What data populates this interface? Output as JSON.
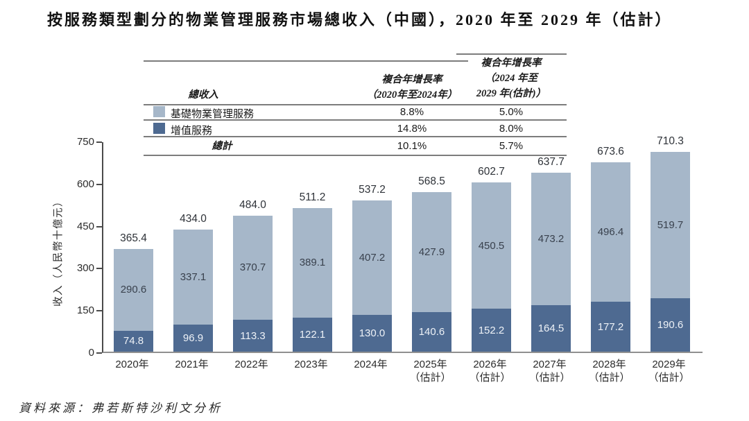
{
  "title": "按服務類型劃分的物業管理服務市場總收入（中國），2020 年至 2029 年（估計）",
  "source": "資料來源：弗若斯特沙利文分析",
  "colors": {
    "basic_service": "#a6b7c9",
    "value_added_service": "#4e6a91",
    "axis": "#4a4a4a",
    "table_line": "#7c7c7c"
  },
  "table": {
    "col1_header": "總收入",
    "col2_header": [
      "複合年增長率",
      "（2020年至2024年）"
    ],
    "col3_header": [
      "複合年增長率",
      "（2024 年至",
      "2029 年(估計)）"
    ],
    "rows": [
      {
        "label": "基礎物業管理服務",
        "cagr_2020_2024": "8.8%",
        "cagr_2024_2029": "5.0%"
      },
      {
        "label": "增值服務",
        "cagr_2020_2024": "14.8%",
        "cagr_2024_2029": "8.0%"
      }
    ],
    "total_row": {
      "label": "總計",
      "cagr_2020_2024": "10.1%",
      "cagr_2024_2029": "5.7%"
    }
  },
  "chart_data": {
    "type": "bar",
    "stacked": true,
    "title": "按服務類型劃分的物業管理服務市場總收入（中國），2020年至2029年（估計）",
    "ylabel": "收入（人民幣十億元）",
    "ylim": [
      0,
      750
    ],
    "yticks": [
      0,
      150,
      300,
      450,
      600,
      750
    ],
    "grid": false,
    "legend_position": "top-table",
    "categories": [
      {
        "year": "2020年",
        "note": ""
      },
      {
        "year": "2021年",
        "note": ""
      },
      {
        "year": "2022年",
        "note": ""
      },
      {
        "year": "2023年",
        "note": ""
      },
      {
        "year": "2024年",
        "note": ""
      },
      {
        "year": "2025年",
        "note": "（估計）"
      },
      {
        "year": "2026年",
        "note": "（估計）"
      },
      {
        "year": "2027年",
        "note": "（估計）"
      },
      {
        "year": "2028年",
        "note": "（估計）"
      },
      {
        "year": "2029年",
        "note": "（估計）"
      }
    ],
    "series": [
      {
        "name": "基礎物業管理服務",
        "color": "#a6b7c9",
        "values": [
          290.6,
          337.1,
          370.7,
          389.1,
          407.2,
          427.9,
          450.5,
          473.2,
          496.4,
          519.7
        ]
      },
      {
        "name": "增值服務",
        "color": "#4e6a91",
        "values": [
          74.8,
          96.9,
          113.3,
          122.1,
          130.0,
          140.6,
          152.2,
          164.5,
          177.2,
          190.6
        ]
      }
    ],
    "totals": [
      365.4,
      434.0,
      484.0,
      511.2,
      537.2,
      568.5,
      602.7,
      637.7,
      673.6,
      710.3
    ]
  }
}
